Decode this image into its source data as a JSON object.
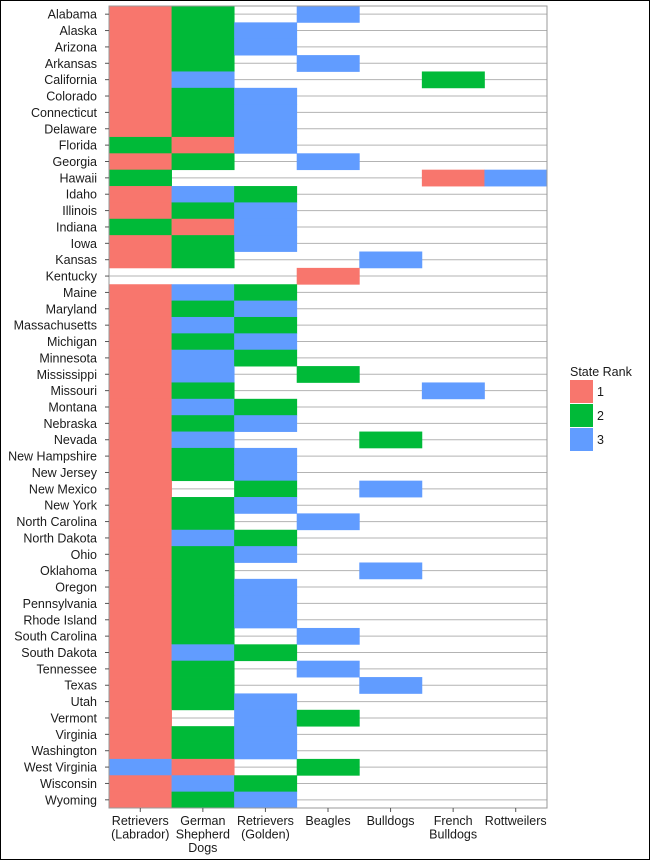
{
  "chart_data": {
    "type": "heatmap",
    "title": "",
    "xlabel": "",
    "ylabel": "",
    "x_categories": [
      [
        "Retrievers",
        "(Labrador)"
      ],
      [
        "German",
        "Shepherd",
        "Dogs"
      ],
      [
        "Retrievers",
        "(Golden)"
      ],
      [
        "Beagles"
      ],
      [
        "Bulldogs"
      ],
      [
        "French",
        "Bulldogs"
      ],
      [
        "Rottweilers"
      ]
    ],
    "y_categories": [
      "Alabama",
      "Alaska",
      "Arizona",
      "Arkansas",
      "California",
      "Colorado",
      "Connecticut",
      "Delaware",
      "Florida",
      "Georgia",
      "Hawaii",
      "Idaho",
      "Illinois",
      "Indiana",
      "Iowa",
      "Kansas",
      "Kentucky",
      "Maine",
      "Maryland",
      "Massachusetts",
      "Michigan",
      "Minnesota",
      "Mississippi",
      "Missouri",
      "Montana",
      "Nebraska",
      "Nevada",
      "New Hampshire",
      "New Jersey",
      "New Mexico",
      "New York",
      "North Carolina",
      "North Dakota",
      "Ohio",
      "Oklahoma",
      "Oregon",
      "Pennsylvania",
      "Rhode Island",
      "South Carolina",
      "South Dakota",
      "Tennessee",
      "Texas",
      "Utah",
      "Vermont",
      "Virginia",
      "Washington",
      "West Virginia",
      "Wisconsin",
      "Wyoming"
    ],
    "values": [
      [
        1,
        2,
        null,
        3,
        null,
        null,
        null
      ],
      [
        1,
        2,
        3,
        null,
        null,
        null,
        null
      ],
      [
        1,
        2,
        3,
        null,
        null,
        null,
        null
      ],
      [
        1,
        2,
        null,
        3,
        null,
        null,
        null
      ],
      [
        1,
        3,
        null,
        null,
        null,
        2,
        null
      ],
      [
        1,
        2,
        3,
        null,
        null,
        null,
        null
      ],
      [
        1,
        2,
        3,
        null,
        null,
        null,
        null
      ],
      [
        1,
        2,
        3,
        null,
        null,
        null,
        null
      ],
      [
        2,
        1,
        3,
        null,
        null,
        null,
        null
      ],
      [
        1,
        2,
        null,
        3,
        null,
        null,
        null
      ],
      [
        2,
        null,
        null,
        null,
        null,
        1,
        3
      ],
      [
        1,
        3,
        2,
        null,
        null,
        null,
        null
      ],
      [
        1,
        2,
        3,
        null,
        null,
        null,
        null
      ],
      [
        2,
        1,
        3,
        null,
        null,
        null,
        null
      ],
      [
        1,
        2,
        3,
        null,
        null,
        null,
        null
      ],
      [
        1,
        2,
        null,
        null,
        3,
        null,
        null
      ],
      [
        null,
        null,
        null,
        1,
        null,
        null,
        null
      ],
      [
        1,
        3,
        2,
        null,
        null,
        null,
        null
      ],
      [
        1,
        2,
        3,
        null,
        null,
        null,
        null
      ],
      [
        1,
        3,
        2,
        null,
        null,
        null,
        null
      ],
      [
        1,
        2,
        3,
        null,
        null,
        null,
        null
      ],
      [
        1,
        3,
        2,
        null,
        null,
        null,
        null
      ],
      [
        1,
        3,
        null,
        2,
        null,
        null,
        null
      ],
      [
        1,
        2,
        null,
        null,
        null,
        3,
        null
      ],
      [
        1,
        3,
        2,
        null,
        null,
        null,
        null
      ],
      [
        1,
        2,
        3,
        null,
        null,
        null,
        null
      ],
      [
        1,
        3,
        null,
        null,
        2,
        null,
        null
      ],
      [
        1,
        2,
        3,
        null,
        null,
        null,
        null
      ],
      [
        1,
        2,
        3,
        null,
        null,
        null,
        null
      ],
      [
        1,
        null,
        2,
        null,
        3,
        null,
        null
      ],
      [
        1,
        2,
        3,
        null,
        null,
        null,
        null
      ],
      [
        1,
        2,
        null,
        3,
        null,
        null,
        null
      ],
      [
        1,
        3,
        2,
        null,
        null,
        null,
        null
      ],
      [
        1,
        2,
        3,
        null,
        null,
        null,
        null
      ],
      [
        1,
        2,
        null,
        null,
        3,
        null,
        null
      ],
      [
        1,
        2,
        3,
        null,
        null,
        null,
        null
      ],
      [
        1,
        2,
        3,
        null,
        null,
        null,
        null
      ],
      [
        1,
        2,
        3,
        null,
        null,
        null,
        null
      ],
      [
        1,
        2,
        null,
        3,
        null,
        null,
        null
      ],
      [
        1,
        3,
        2,
        null,
        null,
        null,
        null
      ],
      [
        1,
        2,
        null,
        3,
        null,
        null,
        null
      ],
      [
        1,
        2,
        null,
        null,
        3,
        null,
        null
      ],
      [
        1,
        2,
        3,
        null,
        null,
        null,
        null
      ],
      [
        1,
        null,
        3,
        2,
        null,
        null,
        null
      ],
      [
        1,
        2,
        3,
        null,
        null,
        null,
        null
      ],
      [
        1,
        2,
        3,
        null,
        null,
        null,
        null
      ],
      [
        3,
        1,
        null,
        2,
        null,
        null,
        null
      ],
      [
        1,
        3,
        2,
        null,
        null,
        null,
        null
      ],
      [
        1,
        2,
        3,
        null,
        null,
        null,
        null
      ]
    ],
    "legend": {
      "title": "State Rank",
      "position": "right",
      "entries": [
        {
          "label": "1",
          "color": "#F8766D"
        },
        {
          "label": "2",
          "color": "#00BA38"
        },
        {
          "label": "3",
          "color": "#619CFF"
        }
      ]
    },
    "grid": true,
    "colors": {
      "grid": "#b3b3b3",
      "panel_border": "#9a9a9a",
      "background": "#ffffff"
    }
  }
}
